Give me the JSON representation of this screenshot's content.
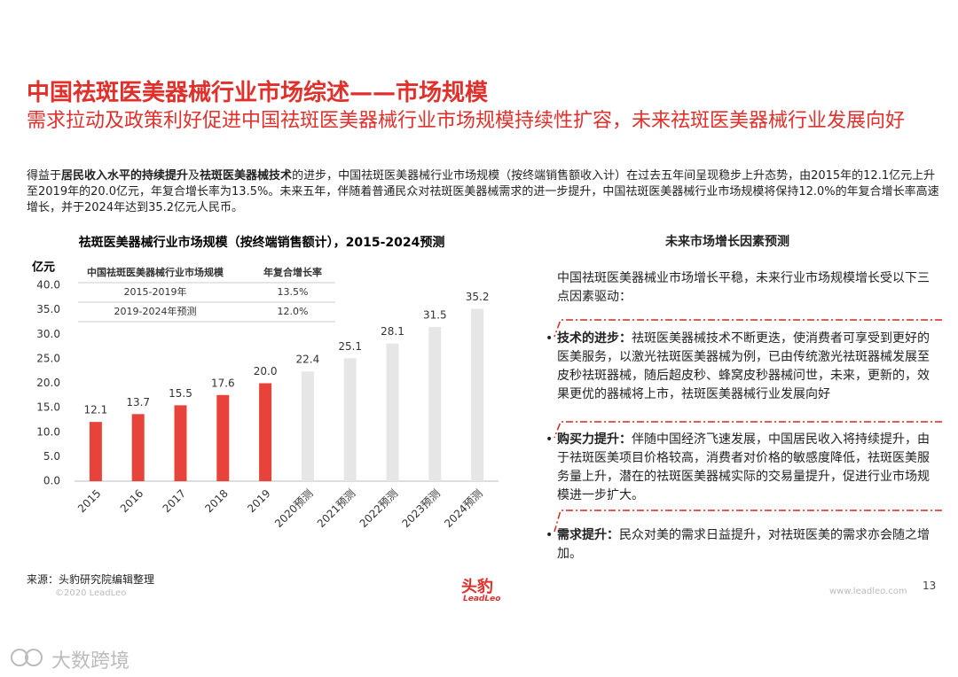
{
  "header": {
    "title": "中国祛斑医美器械行业市场综述——市场规模",
    "subtitle": "需求拉动及政策利好促进中国祛斑医美器械行业市场规模持续性扩容，未来祛斑医美器械行业发展向好"
  },
  "intro": [
    {
      "text": "得益于",
      "bold": false
    },
    {
      "text": "居民收入水平的持续提升",
      "bold": true
    },
    {
      "text": "及",
      "bold": false
    },
    {
      "text": "祛斑医美器械技术",
      "bold": true
    },
    {
      "text": "的进步，中国祛斑医美器械行业市场规模（按终端销售额收入计）在过去五年间呈现稳步上升态势，由2015年的12.1亿元上升至2019年的20.0亿元，年复合增长率为13.5%。未来五年，伴随着普通民众对祛斑医美器械需求的进一步提升，中国祛斑医美器械行业市场规模将保持12.0%的年复合增长率高速增长，并于2024年达到35.2亿元人民币。",
      "bold": false
    }
  ],
  "chart_data": {
    "type": "bar",
    "title": "祛斑医美器械行业市场规模（按终端销售额计），2015-2024预测",
    "y_label": "亿元",
    "categories": [
      "2015",
      "2016",
      "2017",
      "2018",
      "2019",
      "2020预测",
      "2021预测",
      "2022预测",
      "2023预测",
      "2024预测"
    ],
    "values": [
      12.1,
      13.7,
      15.5,
      17.6,
      20.0,
      22.4,
      25.1,
      28.1,
      31.5,
      35.2
    ],
    "value_labels": [
      "12.1",
      "13.7",
      "15.5",
      "17.6",
      "20.0",
      "22.4",
      "25.1",
      "28.1",
      "31.5",
      "35.2"
    ],
    "colors": [
      "#e8433a",
      "#e8433a",
      "#e8433a",
      "#e8433a",
      "#e8433a",
      "#e6e6e6",
      "#e6e6e6",
      "#e6e6e6",
      "#e6e6e6",
      "#e6e6e6"
    ],
    "ylim": [
      0,
      40
    ],
    "yticks": [
      {
        "value": 0,
        "label": "0.0"
      },
      {
        "value": 5,
        "label": "5.0"
      },
      {
        "value": 10,
        "label": "10.0"
      },
      {
        "value": 15,
        "label": "15.0"
      },
      {
        "value": 20,
        "label": "20.0"
      },
      {
        "value": 25,
        "label": "25.0"
      },
      {
        "value": 30,
        "label": "30.0"
      },
      {
        "value": 35,
        "label": "35.0"
      },
      {
        "value": 40,
        "label": "40.0"
      }
    ],
    "grid": false,
    "cagr_table": {
      "headers": [
        "中国祛斑医美器械行业市场规模",
        "年复合增长率"
      ],
      "rows": [
        [
          "2015-2019年",
          "13.5%"
        ],
        [
          "2019-2024年预测",
          "12.0%"
        ]
      ]
    }
  },
  "panel": {
    "title": "未来市场增长因素预测",
    "intro": "中国祛斑医美器械业市场增长平稳，未来行业市场规模增长受以下三点因素驱动：",
    "factors": [
      {
        "label": "技术的进步：",
        "text": "祛斑医美器械技术不断更迭，使消费者可享受到更好的医美服务，以激光祛斑医美器械为例，已由传统激光祛斑器械发展至皮秒祛斑器械，随后超皮秒、蜂窝皮秒器械问世，未来，更新的，效果更优的器械将上市，祛斑医美器械行业发展向好"
      },
      {
        "label": "购买力提升：",
        "text": "伴随中国经济飞速发展，中国居民收入将持续提升，由于祛斑医美项目价格较高，消费者对价格的敏感度降低，祛斑医美服务量上升，潜在的祛斑医美器械实际的交易量提升，促进行业市场规模进一步扩大。"
      },
      {
        "label": "需求提升：",
        "text": "民众对美的需求日益提升，对祛斑医美的需求亦会随之增加。"
      }
    ]
  },
  "footer": {
    "source": "来源：头豹研究院编辑整理",
    "copyright": "©2020 LeadLeo",
    "logo": "头豹",
    "logo_sub": "LeadLeo",
    "url": "www.leadleo.com",
    "page": "13",
    "watermark": "大数跨境"
  }
}
